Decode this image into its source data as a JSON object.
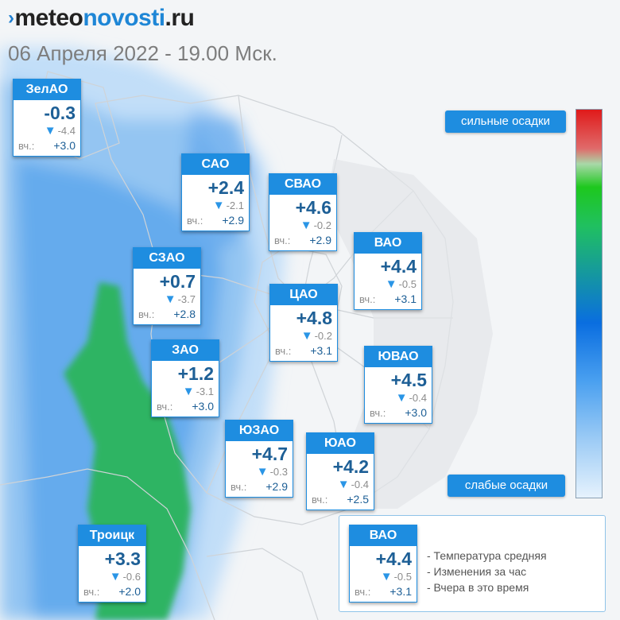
{
  "logo": {
    "chevron": "›",
    "part1": "meteo",
    "part2": "novosti",
    "part3": ".ru"
  },
  "date": "06 Апреля 2022 - 19.00 Мск.",
  "districts": [
    {
      "name": "ЗелАО",
      "temp": "-0.3",
      "change": "-4.4",
      "yesterday_label": "вч.:",
      "yesterday": "+3.0"
    },
    {
      "name": "САО",
      "temp": "+2.4",
      "change": "-2.1",
      "yesterday_label": "вч.:",
      "yesterday": "+2.9"
    },
    {
      "name": "СВАО",
      "temp": "+4.6",
      "change": "-0.2",
      "yesterday_label": "вч.:",
      "yesterday": "+2.9"
    },
    {
      "name": "ВАО",
      "temp": "+4.4",
      "change": "-0.5",
      "yesterday_label": "вч.:",
      "yesterday": "+3.1"
    },
    {
      "name": "СЗАО",
      "temp": "+0.7",
      "change": "-3.7",
      "yesterday_label": "вч.:",
      "yesterday": "+2.8"
    },
    {
      "name": "ЦАО",
      "temp": "+4.8",
      "change": "-0.2",
      "yesterday_label": "вч.:",
      "yesterday": "+3.1"
    },
    {
      "name": "ЗАО",
      "temp": "+1.2",
      "change": "-3.1",
      "yesterday_label": "вч.:",
      "yesterday": "+3.0"
    },
    {
      "name": "ЮВАО",
      "temp": "+4.5",
      "change": "-0.4",
      "yesterday_label": "вч.:",
      "yesterday": "+3.0"
    },
    {
      "name": "ЮЗАО",
      "temp": "+4.7",
      "change": "-0.3",
      "yesterday_label": "вч.:",
      "yesterday": "+2.9"
    },
    {
      "name": "ЮАО",
      "temp": "+4.2",
      "change": "-0.4",
      "yesterday_label": "вч.:",
      "yesterday": "+2.5"
    },
    {
      "name": "Троицк",
      "temp": "+3.3",
      "change": "-0.6",
      "yesterday_label": "вч.:",
      "yesterday": "+2.0"
    }
  ],
  "scale": {
    "top_label": "сильные осадки",
    "bottom_label": "слабые осадки"
  },
  "legend": {
    "sample": {
      "name": "ВАО",
      "temp": "+4.4",
      "change": "-0.5",
      "yesterday_label": "вч.:",
      "yesterday": "+3.1"
    },
    "lines": [
      "- Температура средняя",
      "- Изменения за час",
      "- Вчера в это время"
    ]
  },
  "colors": {
    "accent": "#1e8de0",
    "temp_text": "#1d5f96",
    "heavy_precip": "#e01a1a",
    "moderate_precip": "#1ec81e",
    "light_precip": "#e6f2fd"
  }
}
